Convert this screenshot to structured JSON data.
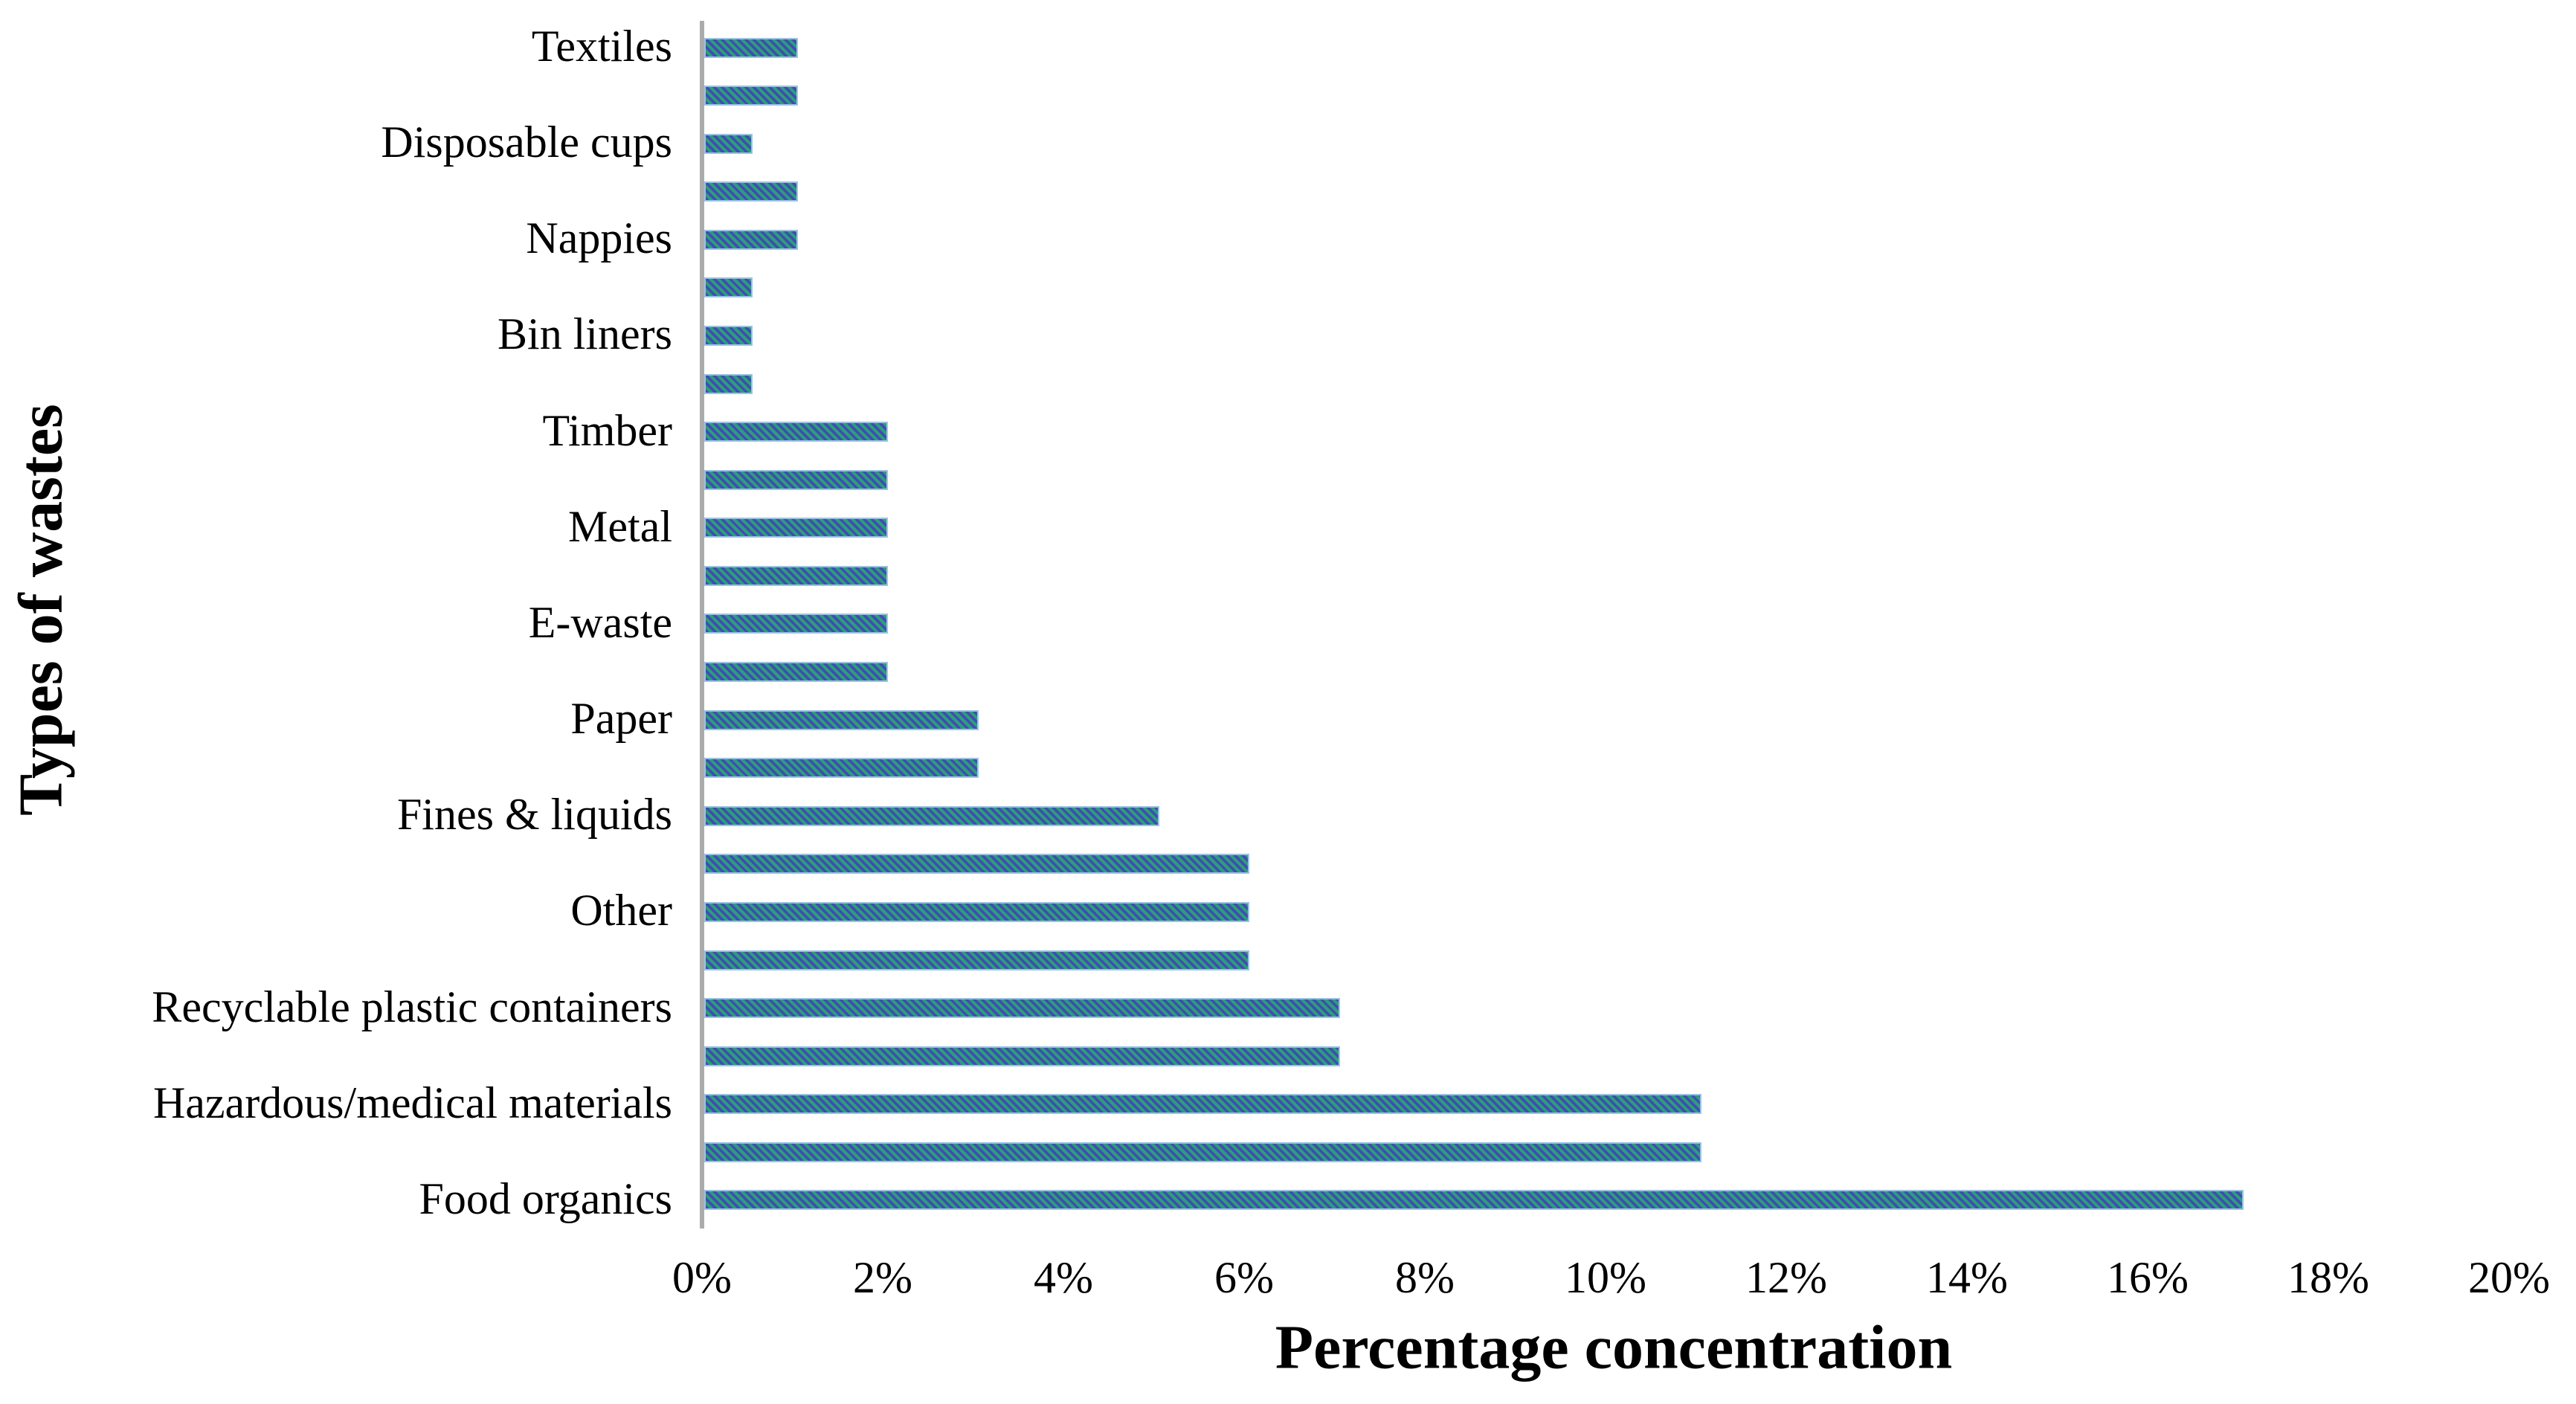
{
  "chart_data": {
    "type": "bar",
    "orientation": "horizontal",
    "title": "",
    "xlabel": "Percentage concentration",
    "ylabel": "Types of wastes",
    "xlim": [
      0,
      20
    ],
    "grid": false,
    "legend": false,
    "x_ticks": [
      {
        "label": "0%",
        "value": 0
      },
      {
        "label": "2%",
        "value": 2
      },
      {
        "label": "4%",
        "value": 4
      },
      {
        "label": "6%",
        "value": 6
      },
      {
        "label": "8%",
        "value": 8
      },
      {
        "label": "10%",
        "value": 10
      },
      {
        "label": "12%",
        "value": 12
      },
      {
        "label": "14%",
        "value": 14
      },
      {
        "label": "16%",
        "value": 16
      },
      {
        "label": "18%",
        "value": 18
      },
      {
        "label": "20%",
        "value": 20
      }
    ],
    "bars": [
      {
        "label": "Textiles",
        "value": 1
      },
      {
        "label": "",
        "value": 1
      },
      {
        "label": "Disposable cups",
        "value": 0.5
      },
      {
        "label": "",
        "value": 1
      },
      {
        "label": "Nappies",
        "value": 1
      },
      {
        "label": "",
        "value": 0.5
      },
      {
        "label": "Bin liners",
        "value": 0.5
      },
      {
        "label": "",
        "value": 0.5
      },
      {
        "label": "Timber",
        "value": 2
      },
      {
        "label": "",
        "value": 2
      },
      {
        "label": "Metal",
        "value": 2
      },
      {
        "label": "",
        "value": 2
      },
      {
        "label": "E-waste",
        "value": 2
      },
      {
        "label": "",
        "value": 2
      },
      {
        "label": "Paper",
        "value": 3
      },
      {
        "label": "",
        "value": 3
      },
      {
        "label": "Fines & liquids",
        "value": 5
      },
      {
        "label": "",
        "value": 6
      },
      {
        "label": "Other",
        "value": 6
      },
      {
        "label": "",
        "value": 6
      },
      {
        "label": "Recyclable plastic containers",
        "value": 7
      },
      {
        "label": "",
        "value": 7
      },
      {
        "label": "Hazardous/medical materials",
        "value": 11
      },
      {
        "label": "",
        "value": 11
      },
      {
        "label": "Food organics",
        "value": 17
      }
    ],
    "colors": {
      "bar_fill": "#2E9C7E",
      "bar_stripe": "#3E4DAF",
      "bar_border": "#9CC2E5",
      "axis_line": "#ABABAB",
      "text": "#000000",
      "background": "#FFFFFF"
    }
  }
}
